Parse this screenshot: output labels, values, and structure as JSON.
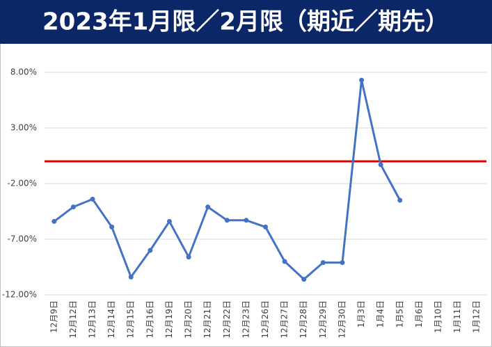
{
  "chart_data": {
    "type": "line",
    "title": "2023年1月限／2月限（期近／期先）",
    "categories": [
      "12月9日",
      "12月12日",
      "12月13日",
      "12月14日",
      "12月15日",
      "12月16日",
      "12月19日",
      "12月20日",
      "12月21日",
      "12月22日",
      "12月23日",
      "12月26日",
      "12月27日",
      "12月28日",
      "12月29日",
      "12月30日",
      "1月3日",
      "1月4日",
      "1月5日",
      "1月6日",
      "1月10日",
      "1月11日",
      "1月12日"
    ],
    "values": [
      -5.4,
      -4.1,
      -3.4,
      -5.9,
      -10.4,
      -8.0,
      -5.4,
      -8.6,
      -4.1,
      -5.3,
      -5.3,
      -5.9,
      -9.0,
      -10.6,
      -9.1,
      -9.1,
      7.3,
      -0.3,
      -3.5,
      null,
      null,
      null,
      null
    ],
    "color": "#4472c4",
    "reference_line": {
      "value": 0,
      "color": "#e00000"
    },
    "ylim": [
      -12,
      8
    ],
    "yticks": [
      {
        "value": -12,
        "label": "-12.00%"
      },
      {
        "value": -7,
        "label": "-7.00%"
      },
      {
        "value": -2,
        "label": "-2.00%"
      },
      {
        "value": 3,
        "label": "3.00%"
      },
      {
        "value": 8,
        "label": "8.00%"
      }
    ],
    "grid": true
  }
}
